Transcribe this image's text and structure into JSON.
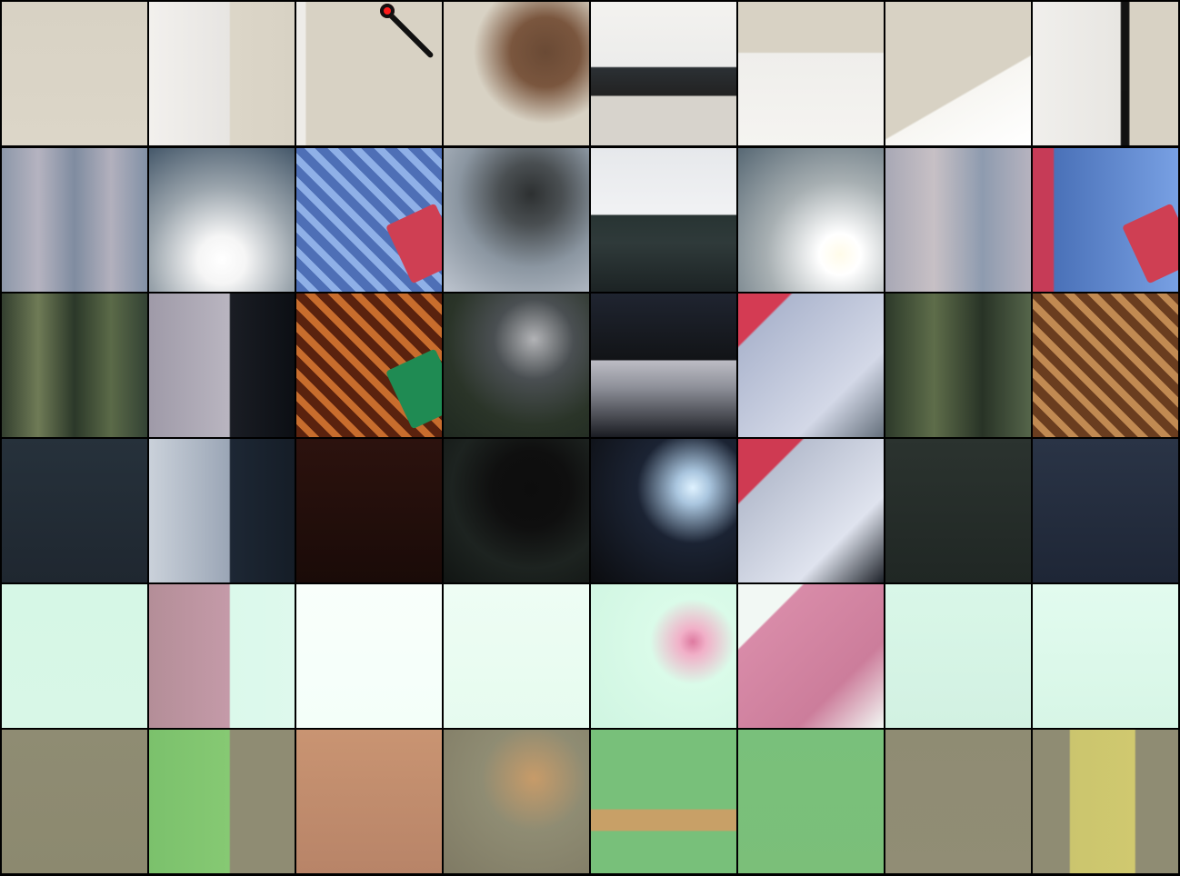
{
  "grid": {
    "rows": 6,
    "cols": 8
  },
  "palette": {
    "row1_wall": "#d9d3c5",
    "row1_shirt": "#ece9e4",
    "row2_base": "#6f7a86",
    "row2_blue": "#5f86c8",
    "row2_red": "#d74a5e",
    "row3_green": "#4d5a42",
    "row3_brown": "#8a4f2e",
    "row3_red": "#b43a3f",
    "row4_dark": "#222c34",
    "row4_maroon": "#2a120e",
    "row5_mint": "#d7f8e7",
    "row5_pink": "#d98aa8",
    "row6_olive": "#8f8c73",
    "row6_green": "#7fc27a",
    "row6_orange": "#c99472",
    "row6_yellow": "#c8c46d"
  },
  "tiles": [
    {
      "row": 0,
      "col": 0,
      "name": "tile-wall",
      "bg": "linear-gradient(180deg,#d8d2c4,#dcd6c8)"
    },
    {
      "row": 0,
      "col": 1,
      "name": "tile-shirt-sleeve",
      "bg": "linear-gradient(90deg,#f2f0ed 0%,#e7e5e2 55%,#dcd6c8 56%,#d8d2c4 100%)"
    },
    {
      "row": 0,
      "col": 2,
      "name": "tile-microphone",
      "bg": "linear-gradient(90deg,#eeece8 0%,#eeece8 6%,#d8d2c4 7%,#d8d2c4 100%)"
    },
    {
      "row": 0,
      "col": 3,
      "name": "tile-ear-hair",
      "bg": "radial-gradient(circle at 70% 35%,#6a4a35 0%,#7a563e 25%,#d8d2c4 52%)"
    },
    {
      "row": 0,
      "col": 4,
      "name": "tile-podium",
      "bg": "linear-gradient(180deg,#f3f2ef 0%,#ececeb 45%,#2b3034 46%,#222 65%,#d7d3cc 66%,#d7d3cc 100%)"
    },
    {
      "row": 0,
      "col": 5,
      "name": "tile-collar",
      "bg": "linear-gradient(180deg,#d8d2c4 0%,#d8d2c4 35%,#efeeeb 36%,#f5f4f1 100%)"
    },
    {
      "row": 0,
      "col": 6,
      "name": "tile-collar-side",
      "bg": "linear-gradient(150deg,#d8d2c4 0%,#d8d2c4 60%,#f7f6f2 61%,#ffffff 100%)"
    },
    {
      "row": 0,
      "col": 7,
      "name": "tile-shirt-tie",
      "bg": "linear-gradient(90deg,#f0efec 0%,#e8e6e2 60%,#121212 61%,#121212 66%,#d8d2c4 67%,#d8d2c4 100%)"
    },
    {
      "row": 1,
      "col": 0,
      "name": "tile-texture",
      "bg": "linear-gradient(90deg,#8d98a9,#b5b3c0,#7f8ca0,#b2b0bd,#8291a6)"
    },
    {
      "row": 1,
      "col": 1,
      "name": "tile-glow",
      "bg": "radial-gradient(circle at 50% 78%,#ffffff 0%,#f5f5f5 18%,#9aa4ac 55%,#45586a 100%)"
    },
    {
      "row": 1,
      "col": 2,
      "name": "tile-blue-pattern",
      "bg": "repeating-linear-gradient(45deg,#4e6fb6 0 10px,#8fb0e7 10px 18px),linear-gradient(#000,#000)"
    },
    {
      "row": 1,
      "col": 3,
      "name": "tile-head-silhouette",
      "bg": "radial-gradient(circle at 60% 32%,#2d3031 0%,#4a4f52 24%,#8b96a1 56%,#bdc4ce 100%)"
    },
    {
      "row": 1,
      "col": 4,
      "name": "tile-bright-bar",
      "bg": "linear-gradient(180deg,#e6e8eb 0%,#f1f2f4 46%,#283433 47%,#2f3a3a 66%,#1c2324 100%)"
    },
    {
      "row": 1,
      "col": 5,
      "name": "tile-soft-glow",
      "bg": "radial-gradient(circle at 70% 74%,#fffbe9 0%,#fff 14%,#a7afb2 50%,#576874 100%)"
    },
    {
      "row": 1,
      "col": 6,
      "name": "tile-texture-2",
      "bg": "linear-gradient(90deg,#a8a8b5,#c7c0c5,#8e9baf,#b6b3bf)"
    },
    {
      "row": 1,
      "col": 7,
      "name": "tile-red-blue-pattern",
      "bg": "linear-gradient(90deg,#c63b57 0%,#c63b57 14%,#4a71b8 15%,#78a0e3 100%)"
    },
    {
      "row": 2,
      "col": 0,
      "name": "tile-green-stripes",
      "bg": "linear-gradient(90deg,#333f2f,#6f7b56,#2b3829,#5b6a48,#334234)"
    },
    {
      "row": 2,
      "col": 1,
      "name": "tile-pink-noise",
      "bg": "linear-gradient(90deg,#9f9aa8 0%,#b9b5c0 55%,#1a1d24 56%,#0c0f14 100%)"
    },
    {
      "row": 2,
      "col": 2,
      "name": "tile-orange-pattern",
      "bg": "repeating-linear-gradient(45deg,#5a220e 0 10px,#c86d2d 10px 18px),linear-gradient(#000,#000)"
    },
    {
      "row": 2,
      "col": 3,
      "name": "tile-head-edge",
      "bg": "radial-gradient(circle at 62% 32%,#b2b3b6 0%,#4a4f52 30%,#2a3428 65%,#1f2920 100%)"
    },
    {
      "row": 2,
      "col": 4,
      "name": "tile-dark-mixed",
      "bg": "linear-gradient(180deg,#1f2430 0%,#121417 46%,#bcbcc4 47%,#8f919a 65%,#1a1c22 100%)"
    },
    {
      "row": 2,
      "col": 5,
      "name": "tile-pink-swirl",
      "bg": "linear-gradient(135deg,#d43b53 0%,#d43b53 18%,#aeb7cf 19%,#d3d8e7 70%,#65707c 100%)"
    },
    {
      "row": 2,
      "col": 6,
      "name": "tile-green-stripes-2",
      "bg": "linear-gradient(90deg,#2d3a2a,#5e6d4a,#283326,#55654a)"
    },
    {
      "row": 2,
      "col": 7,
      "name": "tile-copper-pattern",
      "bg": "repeating-linear-gradient(45deg,#6a3d1f 0 10px,#c18a52 10px 18px),linear-gradient(#000,#000)"
    },
    {
      "row": 3,
      "col": 0,
      "name": "tile-dark-blue",
      "bg": "linear-gradient(180deg,#26313b,#1f2730)"
    },
    {
      "row": 3,
      "col": 1,
      "name": "tile-noisy-light",
      "bg": "linear-gradient(90deg,#cad1da 0%,#9ba6b6 55%,#1d2734 56%,#151d27 100%)"
    },
    {
      "row": 3,
      "col": 2,
      "name": "tile-maroon",
      "bg": "linear-gradient(180deg,#2c120e,#1a0b08)"
    },
    {
      "row": 3,
      "col": 3,
      "name": "tile-dark-head",
      "bg": "radial-gradient(circle at 60% 35%,#0d0d0d 0%,#0f0f0f 30%,#1d2320 62%,#111513 100%)"
    },
    {
      "row": 3,
      "col": 4,
      "name": "tile-dark-light-swirl",
      "bg": "radial-gradient(circle at 70% 34%,#dff2ff 0%,#a9c5de 12%,#1b2333 40%,#0b0c0f 100%)"
    },
    {
      "row": 3,
      "col": 5,
      "name": "tile-pink-shirt",
      "bg": "linear-gradient(135deg,#cf3a52 0%,#cf3a52 22%,#b8bfd0 23%,#dfe3ee 70%,#1d2229 100%)"
    },
    {
      "row": 3,
      "col": 6,
      "name": "tile-dark-green",
      "bg": "linear-gradient(180deg,#2b332f,#202724)"
    },
    {
      "row": 3,
      "col": 7,
      "name": "tile-navy",
      "bg": "linear-gradient(180deg,#2a3446,#1e2636)"
    },
    {
      "row": 4,
      "col": 0,
      "name": "tile-mint",
      "bg": "linear-gradient(180deg,#d6f7e6,#d8f7e7)"
    },
    {
      "row": 4,
      "col": 1,
      "name": "tile-pink-mint",
      "bg": "linear-gradient(90deg,#b48e98 0%,#c49aa8 55%,#dbf9eb 56%,#def9ed 100%)"
    },
    {
      "row": 4,
      "col": 2,
      "name": "tile-white-mint",
      "bg": "linear-gradient(180deg,#f9fffb,#f4fff9)"
    },
    {
      "row": 4,
      "col": 3,
      "name": "tile-mint-soft",
      "bg": "linear-gradient(180deg,#eefdf4,#e6fbef)"
    },
    {
      "row": 4,
      "col": 4,
      "name": "tile-mint-pink",
      "bg": "radial-gradient(circle at 70% 40%,#de7aa0 0%,#f1b0c8 10%,#dafbe9 32%,#cff5e1 100%)"
    },
    {
      "row": 4,
      "col": 5,
      "name": "tile-pink-collar",
      "bg": "linear-gradient(135deg,#f2f8f4 0%,#f2f8f4 22%,#d88ba8 23%,#cc7d9b 70%,#f2f8f4 100%)"
    },
    {
      "row": 4,
      "col": 6,
      "name": "tile-mint-2",
      "bg": "linear-gradient(180deg,#d9f7e8,#d2f1e2)"
    },
    {
      "row": 4,
      "col": 7,
      "name": "tile-mint-3",
      "bg": "linear-gradient(180deg,#e2fbef,#d7f6e6)"
    },
    {
      "row": 5,
      "col": 0,
      "name": "tile-olive",
      "bg": "linear-gradient(180deg,#8f8c73,#8c896f)"
    },
    {
      "row": 5,
      "col": 1,
      "name": "tile-green-olive",
      "bg": "linear-gradient(90deg,#7bc16c 0%,#86c973 55%,#8f8c73 56%,#8f8c73 100%)"
    },
    {
      "row": 5,
      "col": 2,
      "name": "tile-orange-olive",
      "bg": "linear-gradient(180deg,#c99472,#b88468)"
    },
    {
      "row": 5,
      "col": 3,
      "name": "tile-olive-head",
      "bg": "radial-gradient(circle at 62% 34%,#c79b69 0%,#8f8c73 40%,#7f7a64 100%)"
    },
    {
      "row": 5,
      "col": 4,
      "name": "tile-green-orange-bars",
      "bg": "linear-gradient(180deg,#78c07a 0%,#78c07a 55%,#c8a067 56%,#c8a067 70%,#78c07a 71%,#78c07a 100%)"
    },
    {
      "row": 5,
      "col": 5,
      "name": "tile-green-shirt",
      "bg": "linear-gradient(180deg,#79c07b,#7bbf79)"
    },
    {
      "row": 5,
      "col": 6,
      "name": "tile-olive-2",
      "bg": "linear-gradient(180deg,#8f8c73,#918d75)"
    },
    {
      "row": 5,
      "col": 7,
      "name": "tile-yellow-olive",
      "bg": "linear-gradient(90deg,#8f8c73 0%,#8f8c73 25%,#cbc56e 26%,#d0c96f 70%,#8f8c73 71%,#8f8c73 100%)"
    }
  ]
}
